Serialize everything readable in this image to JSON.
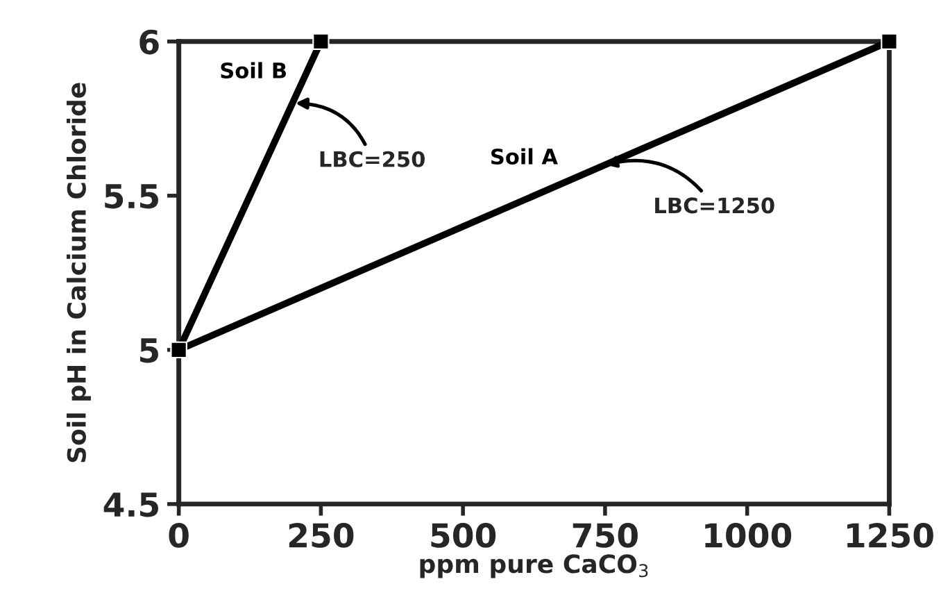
{
  "chart_data": {
    "type": "line",
    "xlabel": "ppm pure CaCO$_{3}$",
    "ylabel": "Soil pH in Calcium Chloride",
    "xlim": [
      0,
      1250
    ],
    "ylim": [
      4.5,
      6
    ],
    "xticks": [
      0,
      250,
      500,
      750,
      1000,
      1250
    ],
    "yticks": [
      4.5,
      5,
      5.5,
      6
    ],
    "series": [
      {
        "name": "Soil A",
        "color": "#000000",
        "x": [
          0,
          1250
        ],
        "values": [
          5,
          6
        ]
      },
      {
        "name": "Soil B",
        "color": "#000000",
        "x": [
          0,
          250
        ],
        "values": [
          5,
          6
        ]
      }
    ],
    "annotations": [
      {
        "text": "LBC=250",
        "x": 205,
        "y": 5.8
      },
      {
        "text": "LBC=1250",
        "x": 750,
        "y": 5.6
      }
    ],
    "marker": "square",
    "line_style": "solid",
    "grid": false,
    "legend": false
  }
}
